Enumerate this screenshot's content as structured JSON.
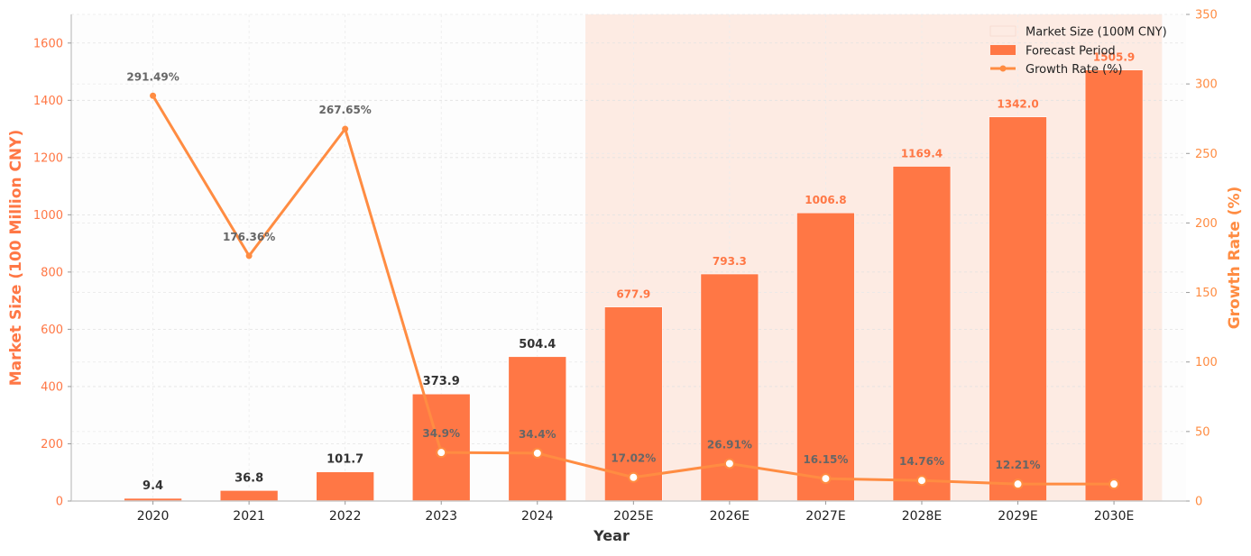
{
  "chart_data": {
    "type": "bar",
    "categories": [
      "2020",
      "2021",
      "2022",
      "2023",
      "2024",
      "2025E",
      "2026E",
      "2027E",
      "2028E",
      "2029E",
      "2030E"
    ],
    "series": [
      {
        "name": "Market Size (100M CNY)",
        "type": "bar",
        "axis": "left",
        "values": [
          9.4,
          36.8,
          101.7,
          373.9,
          504.4,
          677.9,
          793.3,
          1006.8,
          1169.4,
          1342.0,
          1505.9
        ],
        "labels": [
          "9.4",
          "36.8",
          "101.7",
          "373.9",
          "504.4",
          "677.9",
          "793.3",
          "1006.8",
          "1169.4",
          "1342.0",
          "1505.9"
        ]
      },
      {
        "name": "Growth Rate (%)",
        "type": "line",
        "axis": "right",
        "values": [
          291.49,
          176.36,
          267.65,
          34.9,
          34.4,
          17.02,
          26.91,
          16.15,
          14.76,
          12.21,
          12.21
        ],
        "labels": [
          "291.49%",
          "176.36%",
          "267.65%",
          "34.9%",
          "34.4%",
          "17.02%",
          "26.91%",
          "16.15%",
          "14.76%",
          "12.21%",
          ""
        ]
      }
    ],
    "forecast_period": {
      "label": "Forecast Period",
      "from": "2025E",
      "to": "2030E"
    },
    "xlabel": "Year",
    "ylabel": "Market Size (100 Million CNY)",
    "y2label": "Growth Rate (%)",
    "ylim": [
      0,
      1700
    ],
    "y2lim": [
      0,
      350
    ],
    "yticks": [
      0,
      200,
      400,
      600,
      800,
      1000,
      1200,
      1400,
      1600
    ],
    "y2ticks": [
      0,
      50,
      100,
      150,
      200,
      250,
      300,
      350
    ],
    "grid": true,
    "legend": {
      "position": "top-right",
      "entries": [
        "Market Size (100M CNY)",
        "Forecast Period",
        "Growth Rate (%)"
      ]
    },
    "colors": {
      "bar": "#FF7745",
      "forecast_shade": "#FDEBE3",
      "line": "#FF8C42",
      "axis_text": "#FF7745",
      "label_dark": "#333333",
      "label_gray": "#666666"
    }
  }
}
